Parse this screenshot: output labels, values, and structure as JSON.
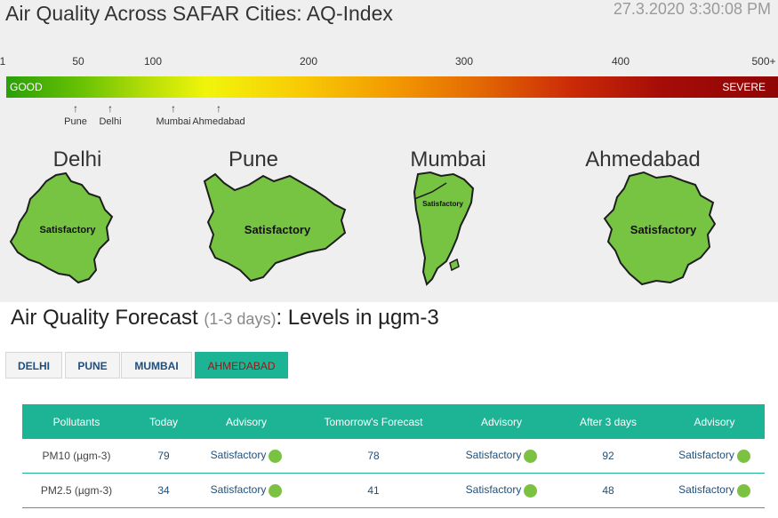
{
  "header": {
    "title": "Air Quality Across SAFAR Cities: AQ-Index",
    "datetime": "27.3.2020 3:30:08 PM"
  },
  "scale": {
    "ticks": [
      "1",
      "50",
      "100",
      "200",
      "300",
      "400",
      "500+"
    ],
    "good_label": "GOOD",
    "severe_label": "SEVERE"
  },
  "markers": [
    {
      "city": "Pune"
    },
    {
      "city": "Delhi"
    },
    {
      "city": "Mumbai"
    },
    {
      "city": "Ahmedabad"
    }
  ],
  "cities": [
    {
      "name": "Delhi",
      "status": "Satisfactory",
      "color": "#76c442"
    },
    {
      "name": "Pune",
      "status": "Satisfactory",
      "color": "#76c442"
    },
    {
      "name": "Mumbai",
      "status": "Satisfactory",
      "color": "#76c442"
    },
    {
      "name": "Ahmedabad",
      "status": "Satisfactory",
      "color": "#76c442"
    }
  ],
  "forecast": {
    "title": "Air Quality Forecast",
    "subtitle": "(1-3 days)",
    "title_suffix": ": Levels in µgm-3",
    "tabs": [
      {
        "label": "DELHI",
        "active": false
      },
      {
        "label": "PUNE",
        "active": false
      },
      {
        "label": "MUMBAI",
        "active": false
      },
      {
        "label": "AHMEDABAD",
        "active": true
      }
    ],
    "columns": [
      "Pollutants",
      "Today",
      "Advisory",
      "Tomorrow's Forecast",
      "Advisory",
      "After 3 days",
      "Advisory"
    ],
    "rows": [
      {
        "pollutant": "PM10 (µgm-3)",
        "today": "79",
        "advisory_today": "Satisfactory",
        "tomorrow": "78",
        "advisory_tomorrow": "Satisfactory",
        "after3": "92",
        "advisory_after3": "Satisfactory"
      },
      {
        "pollutant": "PM2.5 (µgm-3)",
        "today": "34",
        "advisory_today": "Satisfactory",
        "tomorrow": "41",
        "advisory_tomorrow": "Satisfactory",
        "after3": "48",
        "advisory_after3": "Satisfactory"
      }
    ],
    "status_color": "#7cc242",
    "accent_color": "#1db495"
  }
}
